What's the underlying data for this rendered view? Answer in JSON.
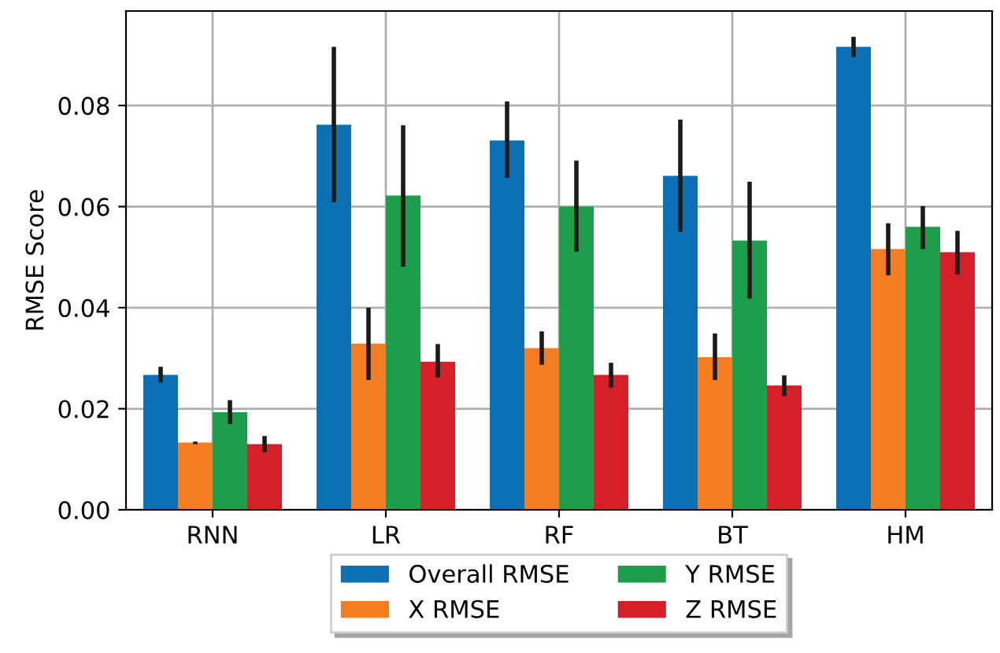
{
  "chart_data": {
    "type": "bar",
    "ylabel": "RMSE Score",
    "categories": [
      "RNN",
      "LR",
      "RF",
      "BT",
      "HM"
    ],
    "series": [
      {
        "name": "Overall RMSE",
        "color": "#0b71b4",
        "values": [
          0.0267,
          0.0762,
          0.0731,
          0.0661,
          0.0916
        ],
        "errors": [
          [
            0.0252,
            0.0283
          ],
          [
            0.0609,
            0.0916
          ],
          [
            0.0657,
            0.0808
          ],
          [
            0.055,
            0.0772
          ],
          [
            0.0896,
            0.0936
          ]
        ]
      },
      {
        "name": "X RMSE",
        "color": "#f47d22",
        "values": [
          0.0133,
          0.0329,
          0.032,
          0.0302,
          0.0516
        ],
        "errors": [
          [
            0.013,
            0.0135
          ],
          [
            0.0257,
            0.04
          ],
          [
            0.0287,
            0.0353
          ],
          [
            0.0257,
            0.0349
          ],
          [
            0.0464,
            0.0567
          ]
        ]
      },
      {
        "name": "Y RMSE",
        "color": "#1d9e4b",
        "values": [
          0.0193,
          0.0622,
          0.06,
          0.0533,
          0.056
        ],
        "errors": [
          [
            0.017,
            0.0217
          ],
          [
            0.0481,
            0.0761
          ],
          [
            0.0511,
            0.0691
          ],
          [
            0.0418,
            0.0649
          ],
          [
            0.0516,
            0.0601
          ]
        ]
      },
      {
        "name": "Z RMSE",
        "color": "#d62029",
        "values": [
          0.013,
          0.0293,
          0.0267,
          0.0246,
          0.051
        ],
        "errors": [
          [
            0.0114,
            0.0146
          ],
          [
            0.0262,
            0.0328
          ],
          [
            0.0242,
            0.0291
          ],
          [
            0.0225,
            0.0266
          ],
          [
            0.0466,
            0.0552
          ]
        ]
      }
    ],
    "ylim": [
      0,
      0.0987
    ],
    "yticks": [
      {
        "value": 0,
        "label": "0.00"
      },
      {
        "value": 0.02,
        "label": "0.02"
      },
      {
        "value": 0.04,
        "label": "0.04"
      },
      {
        "value": 0.06,
        "label": "0.06"
      },
      {
        "value": 0.08,
        "label": "0.08"
      }
    ],
    "grid": true,
    "legend": "bottom"
  }
}
